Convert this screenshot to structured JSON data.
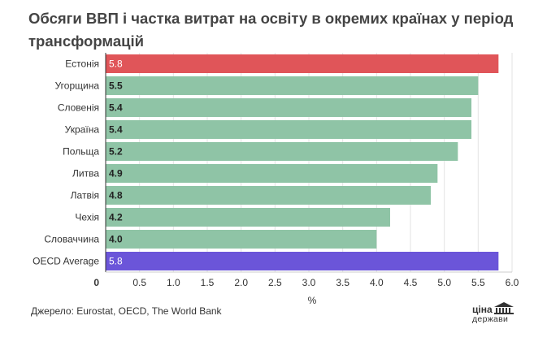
{
  "title": "Обсяги ВВП і частка витрат на освіту в окремих країнах у період трансформацій",
  "source": "Джерело: Eurostat, OECD, The World Bank",
  "logo": {
    "line1": "ціна",
    "line2": "держави"
  },
  "colors": {
    "highlight": "#e05559",
    "default": "#8fc4a6",
    "average": "#6b55d9"
  },
  "chart_data": {
    "type": "bar",
    "orientation": "horizontal",
    "categories": [
      "Естонія",
      "Угорщина",
      "Словенія",
      "Україна",
      "Польща",
      "Литва",
      "Латвія",
      "Чехія",
      "Словаччина",
      "OECD Average"
    ],
    "values": [
      5.8,
      5.5,
      5.4,
      5.4,
      5.2,
      4.9,
      4.8,
      4.2,
      4.0,
      5.8
    ],
    "value_labels": [
      "5.8",
      "5.5",
      "5.4",
      "5.4",
      "5.2",
      "4.9",
      "4.8",
      "4.2",
      "4.0",
      "5.8"
    ],
    "bar_colors": [
      "highlight",
      "default",
      "default",
      "default",
      "default",
      "default",
      "default",
      "default",
      "default",
      "average"
    ],
    "xlabel": "%",
    "xlim": [
      0,
      6.0
    ],
    "ticks": [
      0,
      0.5,
      1.0,
      1.5,
      2.0,
      2.5,
      3.0,
      3.5,
      4.0,
      4.5,
      5.0,
      5.5,
      6.0
    ],
    "tick_labels": [
      "0",
      "0.5",
      "1.0",
      "1.5",
      "2.0",
      "2.5",
      "3.0",
      "3.5",
      "4.0",
      "4.5",
      "5.0",
      "5.5",
      "6.0"
    ],
    "grid": true,
    "legend": "none"
  }
}
